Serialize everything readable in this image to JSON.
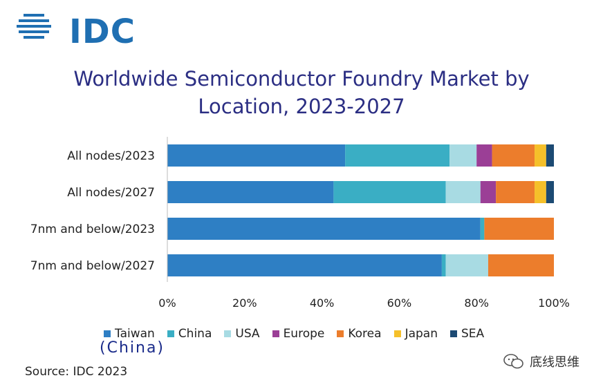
{
  "logo": {
    "text": "IDC"
  },
  "title": {
    "line1": "Worldwide Semiconductor Foundry Market by",
    "line2": "Location, 2023-2027"
  },
  "chart_data": {
    "type": "bar",
    "orientation": "horizontal",
    "stacked": true,
    "title": "Worldwide Semiconductor Foundry Market by Location, 2023-2027",
    "categories": [
      "All nodes/2023",
      "All nodes/2027",
      "7nm and below/2023",
      "7nm and below/2027"
    ],
    "xlim": [
      0,
      100
    ],
    "xticks": [
      "0%",
      "20%",
      "40%",
      "60%",
      "80%",
      "100%"
    ],
    "xlabel": "",
    "ylabel": "",
    "series": [
      {
        "name": "Taiwan",
        "color": "#2e7fc4",
        "values": [
          46,
          43,
          81,
          71
        ]
      },
      {
        "name": "China",
        "color": "#3aaec4",
        "values": [
          27,
          29,
          1,
          1
        ]
      },
      {
        "name": "USA",
        "color": "#a8dbe3",
        "values": [
          7,
          9,
          0,
          11
        ]
      },
      {
        "name": "Europe",
        "color": "#9b3f96",
        "values": [
          4,
          4,
          0,
          0
        ]
      },
      {
        "name": "Korea",
        "color": "#ec7d2c",
        "values": [
          11,
          10,
          18,
          17
        ]
      },
      {
        "name": "Japan",
        "color": "#f5c02a",
        "values": [
          3,
          3,
          0,
          0
        ]
      },
      {
        "name": "SEA",
        "color": "#1c4a73",
        "values": [
          2,
          2,
          0,
          0
        ]
      }
    ],
    "legend_position": "bottom",
    "annotation": "(China)"
  },
  "source": "Source: IDC 2023",
  "watermark": {
    "text": "底线思维"
  }
}
